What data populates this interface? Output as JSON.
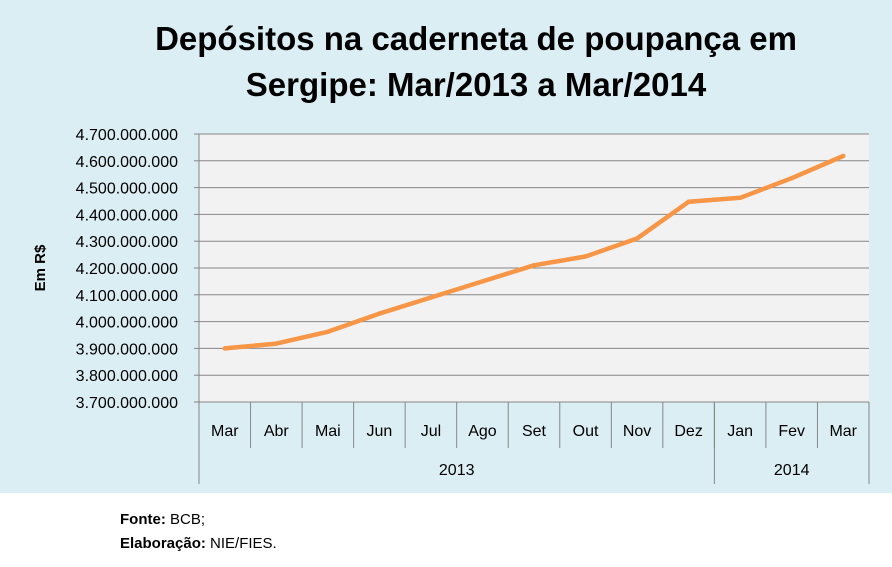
{
  "chart_data": {
    "type": "line",
    "title_lines": [
      "Depósitos na caderneta de poupança em",
      "Sergipe: Mar/2013 a Mar/2014"
    ],
    "ylabel": "Em R$",
    "xlabel": "",
    "ylim": [
      3700000000,
      4700000000
    ],
    "yticks": [
      4700000000,
      4600000000,
      4500000000,
      4400000000,
      4300000000,
      4200000000,
      4100000000,
      4000000000,
      3900000000,
      3800000000,
      3700000000
    ],
    "ytick_labels": [
      "4.700.000.000",
      "4.600.000.000",
      "4.500.000.000",
      "4.400.000.000",
      "4.300.000.000",
      "4.200.000.000",
      "4.100.000.000",
      "4.000.000.000",
      "3.900.000.000",
      "3.800.000.000",
      "3.700.000.000"
    ],
    "categories": [
      "Mar",
      "Abr",
      "Mai",
      "Jun",
      "Jul",
      "Ago",
      "Set",
      "Out",
      "Nov",
      "Dez",
      "Jan",
      "Fev",
      "Mar"
    ],
    "year_groups": [
      {
        "label": "2013",
        "count": 10
      },
      {
        "label": "2014",
        "count": 3
      }
    ],
    "series": [
      {
        "name": "Depósitos",
        "color": "#f79646",
        "values": [
          3900000000,
          3918000000,
          3962000000,
          4030000000,
          4090000000,
          4150000000,
          4210000000,
          4243000000,
          4310000000,
          4447000000,
          4462000000,
          4535000000,
          4618000000
        ]
      }
    ],
    "grid": true,
    "legend": "none"
  },
  "source": {
    "fonte_label": "Fonte:",
    "fonte_value": " BCB;",
    "elab_label": "Elaboração:",
    "elab_value": " NIE/FIES."
  }
}
